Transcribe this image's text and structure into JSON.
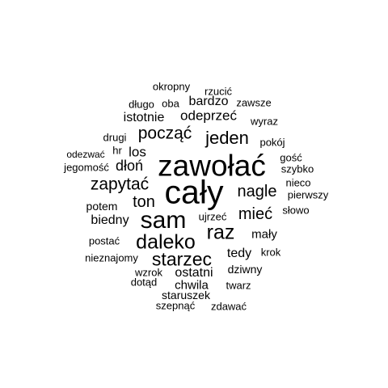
{
  "text_color": "#000000",
  "background": "#ffffff",
  "words": [
    {
      "text": "cały"
    },
    {
      "text": "zawołać"
    },
    {
      "text": "sam"
    },
    {
      "text": "daleko"
    },
    {
      "text": "raz"
    },
    {
      "text": "starzec"
    },
    {
      "text": "jeden"
    },
    {
      "text": "począć"
    },
    {
      "text": "zapytać"
    },
    {
      "text": "nagle"
    },
    {
      "text": "mieć"
    },
    {
      "text": "ton"
    },
    {
      "text": "odeprzeć"
    },
    {
      "text": "dłoń"
    },
    {
      "text": "los"
    },
    {
      "text": "bardzo"
    },
    {
      "text": "istotnie"
    },
    {
      "text": "tedy"
    },
    {
      "text": "biedny"
    },
    {
      "text": "mały"
    },
    {
      "text": "ostatni"
    },
    {
      "text": "chwila"
    },
    {
      "text": "potem"
    },
    {
      "text": "dziwny"
    },
    {
      "text": "okropny"
    },
    {
      "text": "rzucić"
    },
    {
      "text": "długo"
    },
    {
      "text": "oba"
    },
    {
      "text": "zawsze"
    },
    {
      "text": "wyraz"
    },
    {
      "text": "pokój"
    },
    {
      "text": "drugi"
    },
    {
      "text": "hr"
    },
    {
      "text": "odezwać"
    },
    {
      "text": "jegomość"
    },
    {
      "text": "gość"
    },
    {
      "text": "szybko"
    },
    {
      "text": "nieco"
    },
    {
      "text": "pierwszy"
    },
    {
      "text": "słowo"
    },
    {
      "text": "ujrzeć"
    },
    {
      "text": "postać"
    },
    {
      "text": "nieznajomy"
    },
    {
      "text": "krok"
    },
    {
      "text": "wzrok"
    },
    {
      "text": "dotąd"
    },
    {
      "text": "twarz"
    },
    {
      "text": "staruszek"
    },
    {
      "text": "szepnąć"
    },
    {
      "text": "zdawać"
    }
  ]
}
